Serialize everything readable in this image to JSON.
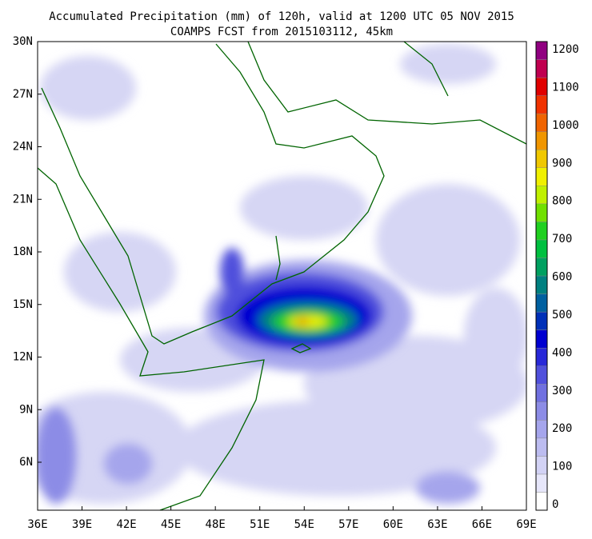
{
  "title": [
    "Accumulated Precipitation (mm) of 120h, valid at 1200 UTC 05 NOV 2015",
    "COAMPS FCST from 2015103112, 45km"
  ],
  "y_axis": [
    "30N",
    "27N",
    "24N",
    "21N",
    "18N",
    "15N",
    "12N",
    "9N",
    "6N"
  ],
  "x_axis": [
    "36E",
    "39E",
    "42E",
    "45E",
    "48E",
    "51E",
    "54E",
    "57E",
    "60E",
    "63E",
    "66E",
    "69E"
  ],
  "colorbar": {
    "labels": [
      0,
      100,
      200,
      300,
      400,
      500,
      600,
      700,
      800,
      900,
      1000,
      1100,
      1200
    ]
  }
}
